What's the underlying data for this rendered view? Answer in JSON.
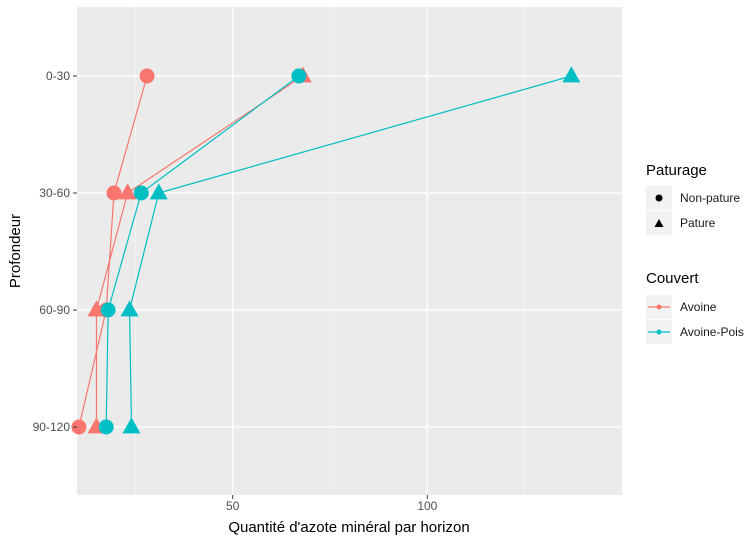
{
  "chart_data": {
    "type": "line",
    "xlabel": "Quantité d'azote minéral par horizon",
    "ylabel": "Profondeur",
    "xlim": [
      10,
      150
    ],
    "x_ticks": [
      50,
      100
    ],
    "y_categories": [
      "0-30",
      "30-60",
      "60-90",
      "90-120"
    ],
    "grid": true,
    "legend_position": "right",
    "legend_shape": {
      "title": "Paturage",
      "items": [
        {
          "label": "Non-pature",
          "shape": "circle"
        },
        {
          "label": "Pature",
          "shape": "triangle"
        }
      ]
    },
    "legend_color": {
      "title": "Couvert",
      "items": [
        {
          "label": "Avoine",
          "color": "#F8766D"
        },
        {
          "label": "Avoine-Pois",
          "color": "#00BFC4"
        }
      ]
    },
    "series": [
      {
        "couvert": "Avoine",
        "paturage": "Non-pature",
        "color": "#F8766D",
        "shape": "circle",
        "points": [
          {
            "x": 28,
            "y": "0-30"
          },
          {
            "x": 19.5,
            "y": "30-60"
          },
          {
            "x": 17.5,
            "y": "60-90"
          },
          {
            "x": 10.5,
            "y": "90-120"
          }
        ]
      },
      {
        "couvert": "Avoine",
        "paturage": "Pature",
        "color": "#F8766D",
        "shape": "triangle",
        "points": [
          {
            "x": 68,
            "y": "0-30"
          },
          {
            "x": 23,
            "y": "30-60"
          },
          {
            "x": 15,
            "y": "60-90"
          },
          {
            "x": 15,
            "y": "90-120"
          }
        ]
      },
      {
        "couvert": "Avoine-Pois",
        "paturage": "Non-pature",
        "color": "#00BFC4",
        "shape": "circle",
        "points": [
          {
            "x": 67,
            "y": "0-30"
          },
          {
            "x": 26.5,
            "y": "30-60"
          },
          {
            "x": 18,
            "y": "60-90"
          },
          {
            "x": 17.5,
            "y": "90-120"
          }
        ]
      },
      {
        "couvert": "Avoine-Pois",
        "paturage": "Pature",
        "color": "#00BFC4",
        "shape": "triangle",
        "points": [
          {
            "x": 137,
            "y": "0-30"
          },
          {
            "x": 31,
            "y": "30-60"
          },
          {
            "x": 23.5,
            "y": "60-90"
          },
          {
            "x": 24,
            "y": "90-120"
          }
        ]
      }
    ]
  }
}
